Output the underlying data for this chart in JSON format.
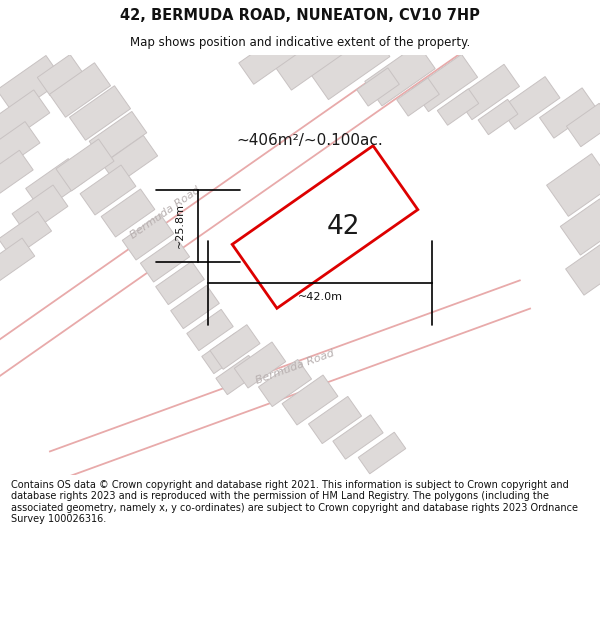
{
  "title": "42, BERMUDA ROAD, NUNEATON, CV10 7HP",
  "subtitle": "Map shows position and indicative extent of the property.",
  "area_label": "~406m²/~0.100ac.",
  "number_label": "42",
  "dim_width": "~42.0m",
  "dim_height": "~25.8m",
  "footer": "Contains OS data © Crown copyright and database right 2021. This information is subject to Crown copyright and database rights 2023 and is reproduced with the permission of HM Land Registry. The polygons (including the associated geometry, namely x, y co-ordinates) are subject to Crown copyright and database rights 2023 Ordnance Survey 100026316.",
  "bg_color": "#ffffff",
  "map_bg": "#f2f0f0",
  "road_color_light": "#e8aaaa",
  "block_fill": "#dedad9",
  "block_edge": "#c8c2c2",
  "road_label_color": "#b8b0b0",
  "highlight_color": "#dd0000",
  "dim_color": "#222222",
  "title_color": "#111111",
  "footer_color": "#111111"
}
